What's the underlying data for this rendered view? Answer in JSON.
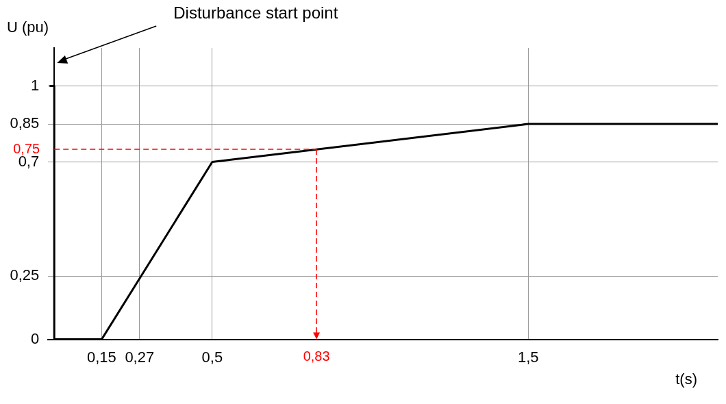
{
  "chart_data": {
    "type": "line",
    "xlabel": "t(s)",
    "ylabel": "U (pu)",
    "x": [
      -0.015,
      0,
      0,
      0.15,
      0.5,
      1.5,
      2.1
    ],
    "series": [
      {
        "color": "#000000",
        "values": [
          1,
          1,
          0,
          0,
          0.7,
          0.85,
          0.85
        ]
      }
    ],
    "xlim": [
      -0.02,
      2.1
    ],
    "ylim": [
      0,
      1.15
    ],
    "xticks": [
      {
        "value": 0.15,
        "label": "0,15"
      },
      {
        "value": 0.27,
        "label": "0,27"
      },
      {
        "value": 0.5,
        "label": "0,5"
      },
      {
        "value": 1.5,
        "label": "1,5"
      }
    ],
    "yticks": [
      0,
      {
        "value": 0.25,
        "label": "0,25"
      },
      {
        "value": 0.7,
        "label": "0,7"
      },
      {
        "value": 0.85,
        "label": "0,85"
      },
      1
    ],
    "grid": true,
    "legend": false,
    "marker": "none",
    "line_style": "solid",
    "ref_lines": [
      {
        "axis": "y",
        "value": 0.75,
        "label": "0,75",
        "color": "#ff0000",
        "line_style": "dashed"
      },
      {
        "axis": "x",
        "value": 0.83,
        "label": "0,83",
        "color": "#ff0000",
        "line_style": "dashed"
      }
    ],
    "annotations": [
      "Disturbance start point"
    ]
  }
}
